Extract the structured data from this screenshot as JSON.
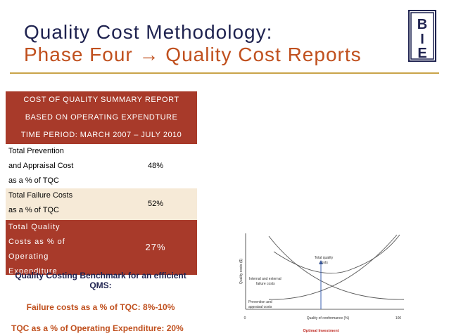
{
  "title": {
    "line1": "Quality Cost Methodology:",
    "line2": "Phase Four → Quality Cost Reports"
  },
  "logo": {
    "letters": [
      "B",
      "I",
      "E"
    ]
  },
  "report": {
    "header": [
      "COST OF QUALITY SUMMARY REPORT",
      "BASED ON OPERATING EXPENDTURE",
      "TIME PERIOD:  MARCH 2007 – JULY 2010"
    ],
    "rows": [
      {
        "label": [
          "Total Prevention",
          "and Appraisal Cost",
          "as a % of TQC"
        ],
        "value": "48%"
      },
      {
        "label": [
          "Total Failure Costs",
          "as a % of TQC"
        ],
        "value": "52%"
      },
      {
        "label": [
          "Total Quality",
          "Costs as % of",
          "Operating",
          "Expenditure"
        ],
        "value": "27%"
      }
    ]
  },
  "benchmark": {
    "title_l1": "Quality Costing Benchmark for an efficient",
    "title_l2": "QMS:",
    "failure": "Failure costs as a % of TQC: 8%-10%",
    "tqc": "TQC as a % of Operating Expenditure: 20%"
  },
  "chart": {
    "ylabel": "Quality costs ($)",
    "xlabel": "Quality of conformance (%)",
    "x_min": "0",
    "x_max": "100",
    "total_label_l1": "Total quality",
    "total_label_l2": "costs",
    "failure_label_l1": "Internal and external",
    "failure_label_l2": "failure costs",
    "prevention_label_l1": "Prevention and",
    "prevention_label_l2": "appraisal costs",
    "optimal_label": "Optimal Investment",
    "colors": {
      "curve": "#555555",
      "arrow": "#3a5fb0",
      "optimal": "#c0312a"
    }
  },
  "colors": {
    "title_navy": "#1f2350",
    "title_orange": "#c0501e",
    "header_red": "#a83a2a",
    "row_beige": "#f6ead7"
  }
}
